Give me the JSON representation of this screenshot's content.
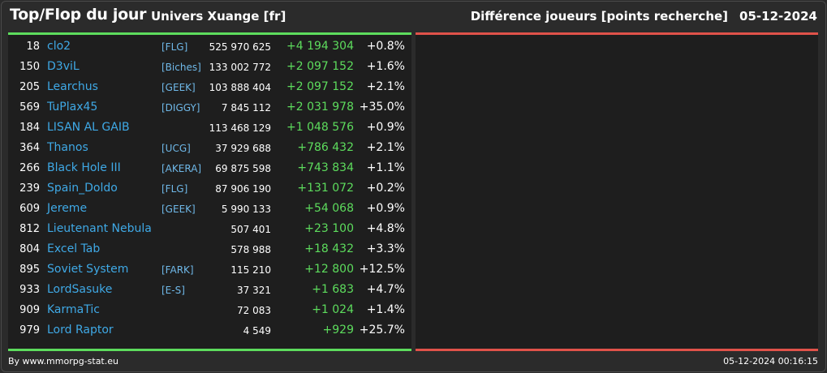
{
  "header": {
    "title": "Top/Flop du jour",
    "subtitle": "Univers Xuange [fr]",
    "right_title": "Différence joueurs [points recherche]",
    "date": "05-12-2024"
  },
  "colors": {
    "background": "#2b2b2b",
    "panel": "#1e1e1e",
    "top_accent": "#5ddc5d",
    "flop_accent": "#e0524a",
    "name_link": "#3fa9e6",
    "positive": "#5ddc5d"
  },
  "top_rows": [
    {
      "rank": "18",
      "name": "clo2",
      "ally": "[FLG]",
      "points": "525 970 625",
      "diff": "+4 194 304",
      "pct": "+0.8%"
    },
    {
      "rank": "150",
      "name": "D3viL",
      "ally": "[Biches]",
      "points": "133 002 772",
      "diff": "+2 097 152",
      "pct": "+1.6%"
    },
    {
      "rank": "205",
      "name": "Learchus",
      "ally": "[GEEK]",
      "points": "103 888 404",
      "diff": "+2 097 152",
      "pct": "+2.1%"
    },
    {
      "rank": "569",
      "name": "TuPlax45",
      "ally": "[DIGGY]",
      "points": "7 845 112",
      "diff": "+2 031 978",
      "pct": "+35.0%"
    },
    {
      "rank": "184",
      "name": "LISAN AL GAIB",
      "ally": "",
      "points": "113 468 129",
      "diff": "+1 048 576",
      "pct": "+0.9%"
    },
    {
      "rank": "364",
      "name": "Thanos",
      "ally": "[UCG]",
      "points": "37 929 688",
      "diff": "+786 432",
      "pct": "+2.1%"
    },
    {
      "rank": "266",
      "name": "Black Hole III",
      "ally": "[AKERA]",
      "points": "69 875 598",
      "diff": "+743 834",
      "pct": "+1.1%"
    },
    {
      "rank": "239",
      "name": "Spain_Doldo",
      "ally": "[FLG]",
      "points": "87 906 190",
      "diff": "+131 072",
      "pct": "+0.2%"
    },
    {
      "rank": "609",
      "name": "Jereme",
      "ally": "[GEEK]",
      "points": "5 990 133",
      "diff": "+54 068",
      "pct": "+0.9%"
    },
    {
      "rank": "812",
      "name": "Lieutenant Nebula",
      "ally": "",
      "points": "507 401",
      "diff": "+23 100",
      "pct": "+4.8%"
    },
    {
      "rank": "804",
      "name": "Excel Tab",
      "ally": "",
      "points": "578 988",
      "diff": "+18 432",
      "pct": "+3.3%"
    },
    {
      "rank": "895",
      "name": "Soviet System",
      "ally": "[FARK]",
      "points": "115 210",
      "diff": "+12 800",
      "pct": "+12.5%"
    },
    {
      "rank": "933",
      "name": "LordSasuke",
      "ally": "[E-S]",
      "points": "37 321",
      "diff": "+1 683",
      "pct": "+4.7%"
    },
    {
      "rank": "909",
      "name": "KarmaTic",
      "ally": "",
      "points": "72 083",
      "diff": "+1 024",
      "pct": "+1.4%"
    },
    {
      "rank": "979",
      "name": "Lord Raptor",
      "ally": "",
      "points": "4 549",
      "diff": "+929",
      "pct": "+25.7%"
    }
  ],
  "footer": {
    "source": "By www.mmorpg-stat.eu",
    "timestamp": "05-12-2024 00:16:15"
  }
}
